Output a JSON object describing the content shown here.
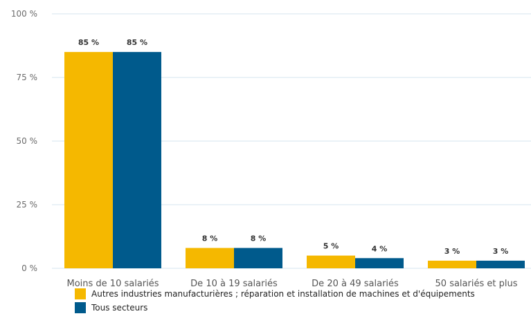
{
  "chart_data": {
    "type": "bar",
    "categories": [
      "Moins de 10 salariés",
      "De 10 à 19 salariés",
      "De 20 à 49 salariés",
      "50 salariés et plus"
    ],
    "series": [
      {
        "name": "Autres industries manufacturières ; réparation et installation de machines et d'équipements",
        "values": [
          85,
          8,
          5,
          3
        ],
        "labels": [
          "85 %",
          "8 %",
          "5 %",
          "3 %"
        ],
        "color": "#F5B800"
      },
      {
        "name": "Tous secteurs",
        "values": [
          85,
          8,
          4,
          3
        ],
        "labels": [
          "85 %",
          "8 %",
          "4 %",
          "3 %"
        ],
        "color": "#005A8C"
      }
    ],
    "ylim": [
      0,
      100
    ],
    "yticks": [
      0,
      25,
      50,
      75,
      100
    ],
    "ytick_labels": [
      "0 %",
      "25 %",
      "50 %",
      "75 %",
      "100 %"
    ],
    "grid": true,
    "legend_position": "bottom-left"
  }
}
